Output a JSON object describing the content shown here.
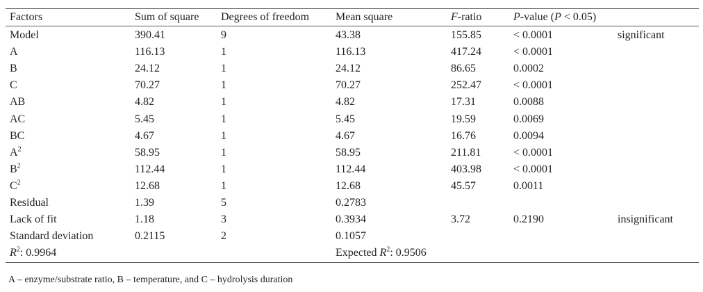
{
  "table": {
    "headers": {
      "factors": "Factors",
      "sum_of_square": "Sum of square",
      "degrees_of_freedom": "Degrees of freedom",
      "mean_square": "Mean square",
      "f_ratio_italic": "F",
      "f_ratio_rest": "-ratio",
      "p_value_italic": "P",
      "p_value_rest": "-value (",
      "p_value_cond_italic": "P",
      "p_value_cond_rest": " < 0.05)"
    },
    "rows": [
      {
        "factor": "Model",
        "sup": "",
        "ss": "390.41",
        "df": "9",
        "ms": "43.38",
        "f": "155.85",
        "p": "< 0.0001",
        "note": "significant"
      },
      {
        "factor": "A",
        "sup": "",
        "ss": "116.13",
        "df": "1",
        "ms": "116.13",
        "f": "417.24",
        "p": "< 0.0001",
        "note": ""
      },
      {
        "factor": "B",
        "sup": "",
        "ss": "24.12",
        "df": "1",
        "ms": "24.12",
        "f": "86.65",
        "p": "0.0002",
        "note": ""
      },
      {
        "factor": "C",
        "sup": "",
        "ss": "70.27",
        "df": "1",
        "ms": "70.27",
        "f": "252.47",
        "p": "< 0.0001",
        "note": ""
      },
      {
        "factor": "AB",
        "sup": "",
        "ss": "4.82",
        "df": "1",
        "ms": "4.82",
        "f": "17.31",
        "p": "0.0088",
        "note": ""
      },
      {
        "factor": "AC",
        "sup": "",
        "ss": "5.45",
        "df": "1",
        "ms": "5.45",
        "f": "19.59",
        "p": "0.0069",
        "note": ""
      },
      {
        "factor": "BC",
        "sup": "",
        "ss": "4.67",
        "df": "1",
        "ms": "4.67",
        "f": "16.76",
        "p": "0.0094",
        "note": ""
      },
      {
        "factor": "A",
        "sup": "2",
        "ss": "58.95",
        "df": "1",
        "ms": "58.95",
        "f": "211.81",
        "p": "< 0.0001",
        "note": ""
      },
      {
        "factor": "B",
        "sup": "2",
        "ss": "112.44",
        "df": "1",
        "ms": "112.44",
        "f": "403.98",
        "p": "< 0.0001",
        "note": ""
      },
      {
        "factor": "C",
        "sup": "2",
        "ss": "12.68",
        "df": "1",
        "ms": "12.68",
        "f": "45.57",
        "p": "0.0011",
        "note": ""
      },
      {
        "factor": "Residual",
        "sup": "",
        "ss": "1.39",
        "df": "5",
        "ms": "0.2783",
        "f": "",
        "p": "",
        "note": ""
      },
      {
        "factor": "Lack of fit",
        "sup": "",
        "ss": "1.18",
        "df": "3",
        "ms": "0.3934",
        "f": "3.72",
        "p": "0.2190",
        "note": "insignificant"
      },
      {
        "factor": "Standard deviation",
        "sup": "",
        "ss": "0.2115",
        "df": "2",
        "ms": "0.1057",
        "f": "",
        "p": "",
        "note": ""
      }
    ],
    "summary": {
      "r2_italic": "R",
      "r2_sup": "2",
      "r2_value": ": 0.9964",
      "expected_prefix": "Expected ",
      "expected_italic": "R",
      "expected_sup": "2",
      "expected_value": ": 0.9506"
    }
  },
  "footnote": "A – enzyme/substrate ratio, B – temperature, and C – hydrolysis duration"
}
